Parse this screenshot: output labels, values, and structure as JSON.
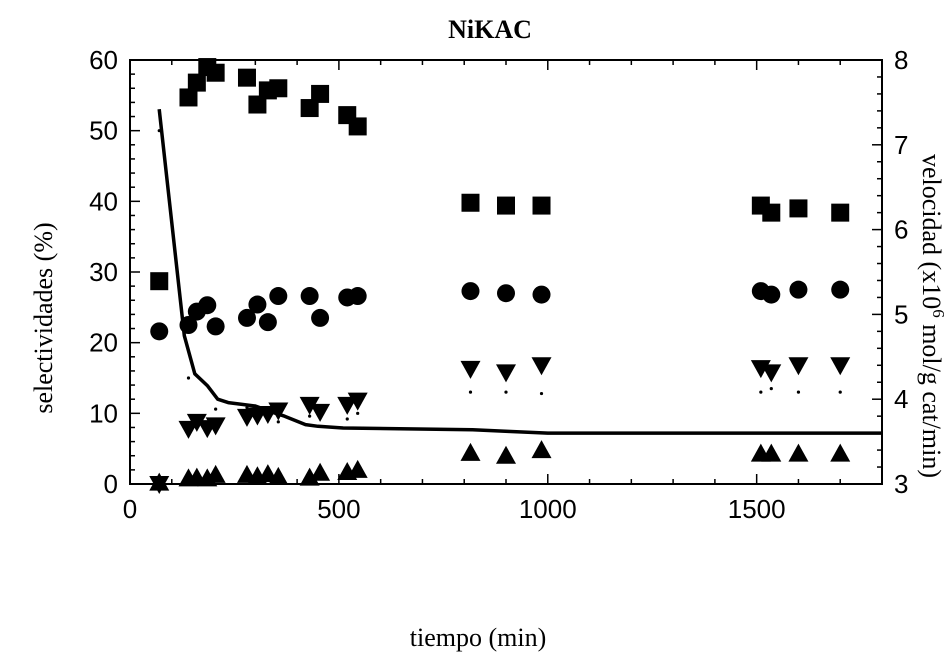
{
  "chart_data": {
    "type": "scatter",
    "title": "NiKAC",
    "xlabel": "tiempo (min)",
    "ylabel_left": "selectividades (%)",
    "ylabel_right": "velocidad (x10",
    "ylabel_right_sup": "6",
    "ylabel_right_tail": " mol/g cat/min)",
    "xlim": [
      0,
      1800
    ],
    "ylim_left": [
      0,
      60
    ],
    "ylim_right": [
      3,
      8
    ],
    "x_ticks": [
      0,
      500,
      1000,
      1500
    ],
    "y_left_ticks": [
      0,
      10,
      20,
      30,
      40,
      50,
      60
    ],
    "y_right_ticks": [
      3,
      4,
      5,
      6,
      7,
      8
    ],
    "series": [
      {
        "marker": "square",
        "axis": "left",
        "points": [
          [
            70,
            28.7
          ],
          [
            140,
            54.7
          ],
          [
            160,
            56.8
          ],
          [
            185,
            59.0
          ],
          [
            205,
            58.2
          ],
          [
            280,
            57.5
          ],
          [
            305,
            53.7
          ],
          [
            330,
            55.7
          ],
          [
            355,
            56.0
          ],
          [
            430,
            53.2
          ],
          [
            455,
            55.2
          ],
          [
            520,
            52.2
          ],
          [
            545,
            50.6
          ],
          [
            815,
            39.8
          ],
          [
            900,
            39.4
          ],
          [
            985,
            39.4
          ],
          [
            1510,
            39.4
          ],
          [
            1535,
            38.4
          ],
          [
            1600,
            39.0
          ],
          [
            1700,
            38.4
          ]
        ]
      },
      {
        "marker": "circle",
        "axis": "left",
        "points": [
          [
            70,
            21.6
          ],
          [
            140,
            22.5
          ],
          [
            160,
            24.4
          ],
          [
            185,
            25.3
          ],
          [
            205,
            22.3
          ],
          [
            280,
            23.5
          ],
          [
            305,
            25.4
          ],
          [
            330,
            22.9
          ],
          [
            355,
            26.6
          ],
          [
            430,
            26.6
          ],
          [
            455,
            23.5
          ],
          [
            520,
            26.4
          ],
          [
            545,
            26.6
          ],
          [
            815,
            27.3
          ],
          [
            900,
            27.0
          ],
          [
            985,
            26.8
          ],
          [
            1510,
            27.3
          ],
          [
            1535,
            26.8
          ],
          [
            1600,
            27.5
          ],
          [
            1700,
            27.5
          ]
        ]
      },
      {
        "marker": "triangle-down",
        "axis": "left",
        "points": [
          [
            70,
            0.0
          ],
          [
            140,
            7.8
          ],
          [
            160,
            8.8
          ],
          [
            185,
            7.9
          ],
          [
            205,
            8.3
          ],
          [
            280,
            9.5
          ],
          [
            305,
            9.7
          ],
          [
            330,
            9.9
          ],
          [
            355,
            10.4
          ],
          [
            430,
            11.2
          ],
          [
            455,
            10.2
          ],
          [
            520,
            11.2
          ],
          [
            545,
            11.8
          ],
          [
            815,
            16.3
          ],
          [
            900,
            15.8
          ],
          [
            985,
            16.8
          ],
          [
            1510,
            16.4
          ],
          [
            1535,
            15.8
          ],
          [
            1600,
            16.8
          ],
          [
            1700,
            16.8
          ]
        ]
      },
      {
        "marker": "triangle-up",
        "axis": "left",
        "points": [
          [
            70,
            0.2
          ],
          [
            140,
            0.8
          ],
          [
            160,
            0.9
          ],
          [
            185,
            0.8
          ],
          [
            205,
            1.3
          ],
          [
            280,
            1.3
          ],
          [
            305,
            1.1
          ],
          [
            330,
            1.4
          ],
          [
            355,
            1.0
          ],
          [
            430,
            0.9
          ],
          [
            455,
            1.6
          ],
          [
            520,
            1.7
          ],
          [
            545,
            2.0
          ],
          [
            815,
            4.4
          ],
          [
            900,
            4.0
          ],
          [
            985,
            4.8
          ],
          [
            1510,
            4.3
          ],
          [
            1535,
            4.3
          ],
          [
            1600,
            4.3
          ],
          [
            1700,
            4.3
          ]
        ]
      },
      {
        "marker": "dot",
        "axis": "left",
        "points": [
          [
            70,
            50.0
          ],
          [
            140,
            15.0
          ],
          [
            160,
            9.0
          ],
          [
            185,
            8.0
          ],
          [
            205,
            10.6
          ],
          [
            280,
            10.8
          ],
          [
            305,
            9.6
          ],
          [
            330,
            10.5
          ],
          [
            355,
            8.8
          ],
          [
            430,
            9.6
          ],
          [
            455,
            10.5
          ],
          [
            520,
            9.2
          ],
          [
            545,
            10.0
          ],
          [
            815,
            13.0
          ],
          [
            900,
            13.0
          ],
          [
            985,
            12.8
          ],
          [
            1510,
            13.0
          ],
          [
            1535,
            13.5
          ],
          [
            1600,
            13.0
          ],
          [
            1700,
            13.0
          ]
        ]
      },
      {
        "marker": "line",
        "axis": "right",
        "points": [
          [
            70,
            7.42
          ],
          [
            130,
            4.75
          ],
          [
            155,
            4.3
          ],
          [
            185,
            4.16
          ],
          [
            210,
            4.0
          ],
          [
            235,
            3.96
          ],
          [
            300,
            3.92
          ],
          [
            345,
            3.84
          ],
          [
            370,
            3.8
          ],
          [
            420,
            3.7
          ],
          [
            450,
            3.68
          ],
          [
            510,
            3.66
          ],
          [
            820,
            3.64
          ],
          [
            905,
            3.62
          ],
          [
            1000,
            3.6
          ],
          [
            1800,
            3.6
          ]
        ]
      }
    ]
  }
}
